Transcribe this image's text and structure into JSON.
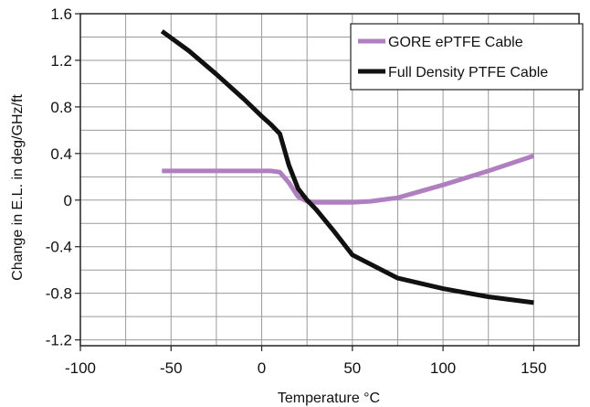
{
  "chart_data": {
    "type": "line",
    "xlabel": "Temperature °C",
    "ylabel": "Change in E.L. in deg/GHz/ft",
    "xlim": [
      -100,
      175
    ],
    "ylim": [
      -1.25,
      1.6
    ],
    "x_ticks": [
      -100,
      -50,
      0,
      50,
      100,
      150
    ],
    "x_tick_labels": [
      "-100",
      "-50",
      "0",
      "50",
      "100",
      "150"
    ],
    "y_ticks": [
      1.6,
      1.2,
      0.8,
      0.4,
      0,
      -0.4,
      -0.8,
      -1.2
    ],
    "y_tick_labels": [
      "1.6",
      "1.2",
      "0.8",
      "0.4",
      "0",
      "-0.4",
      "-0.8",
      "-1.2"
    ],
    "grid": true,
    "legend_position": "top-right",
    "series": [
      {
        "name": "GORE ePTFE Cable",
        "color": "#b07fc0",
        "x": [
          -55,
          -40,
          -20,
          0,
          5,
          10,
          15,
          20,
          25,
          30,
          40,
          50,
          60,
          75,
          100,
          125,
          150
        ],
        "y": [
          0.25,
          0.25,
          0.25,
          0.25,
          0.25,
          0.24,
          0.15,
          0.03,
          -0.01,
          -0.02,
          -0.02,
          -0.02,
          -0.01,
          0.02,
          0.13,
          0.25,
          0.38
        ]
      },
      {
        "name": "Full Density PTFE Cable",
        "color": "#111111",
        "x": [
          -55,
          -40,
          -25,
          -10,
          0,
          5,
          10,
          15,
          20,
          25,
          30,
          40,
          50,
          75,
          100,
          125,
          150
        ],
        "y": [
          1.45,
          1.28,
          1.08,
          0.87,
          0.72,
          0.65,
          0.57,
          0.3,
          0.1,
          0.0,
          -0.08,
          -0.27,
          -0.47,
          -0.67,
          -0.76,
          -0.83,
          -0.88
        ]
      }
    ]
  }
}
